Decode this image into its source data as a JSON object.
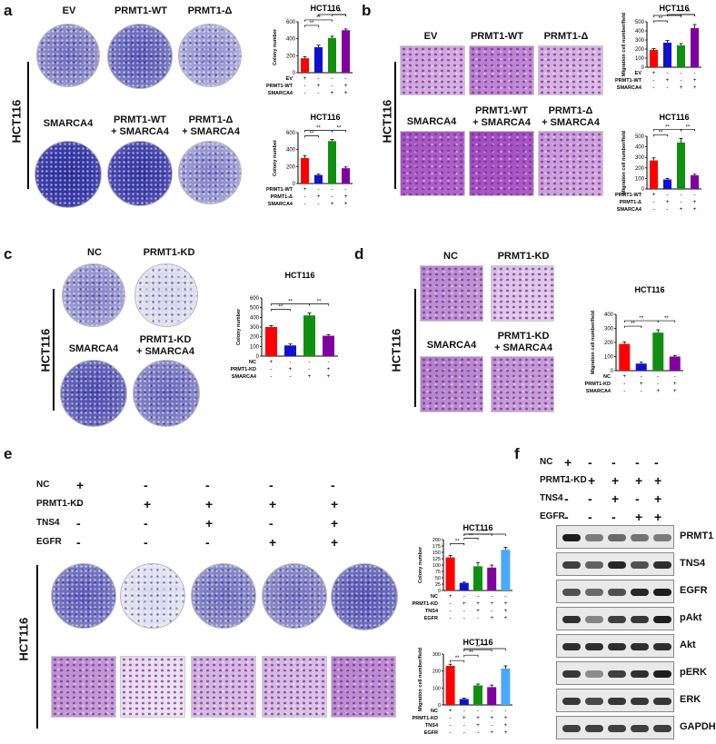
{
  "panels": {
    "a": {
      "letter": "a",
      "cell_line": "HCT116",
      "dish_labels": [
        "EV",
        "PRMT1-WT",
        "PRMT1-Δ",
        "SMARCA4",
        "PRMT1-WT\n+ SMARCA4",
        "PRMT1-Δ\n+ SMARCA4"
      ]
    },
    "b": {
      "letter": "b",
      "cell_line": "HCT116",
      "dish_labels": [
        "EV",
        "PRMT1-WT",
        "PRMT1-Δ",
        "SMARCA4",
        "PRMT1-WT\n+ SMARCA4",
        "PRMT1-Δ\n+ SMARCA4"
      ]
    },
    "c": {
      "letter": "c",
      "cell_line": "HCT116",
      "dish_labels": [
        "NC",
        "PRMT1-KD",
        "SMARCA4",
        "PRMT1-KD\n+ SMARCA4"
      ]
    },
    "d": {
      "letter": "d",
      "cell_line": "HCT116",
      "dish_labels": [
        "NC",
        "PRMT1-KD",
        "SMARCA4",
        "PRMT1-KD\n+ SMARCA4"
      ]
    },
    "e": {
      "letter": "e",
      "cell_line": "HCT116",
      "matrix_rows": [
        {
          "name": "NC",
          "vals": [
            "+",
            "-",
            "-",
            "-",
            "-"
          ]
        },
        {
          "name": "PRMT1-KD",
          "vals": [
            "-",
            "+",
            "+",
            "+",
            "+"
          ]
        },
        {
          "name": "TNS4",
          "vals": [
            "-",
            "-",
            "+",
            "-",
            "+"
          ]
        },
        {
          "name": "EGFR",
          "vals": [
            "-",
            "-",
            "-",
            "+",
            "+"
          ]
        }
      ]
    },
    "f": {
      "letter": "f",
      "matrix_rows": [
        {
          "name": "NC",
          "vals": [
            "+",
            "-",
            "-",
            "-",
            "-"
          ]
        },
        {
          "name": "PRMT1-KD",
          "vals": [
            "-",
            "+",
            "+",
            "+",
            "+"
          ]
        },
        {
          "name": "TNS4",
          "vals": [
            "-",
            "-",
            "+",
            "-",
            "+"
          ]
        },
        {
          "name": "EGFR",
          "vals": [
            "-",
            "-",
            "-",
            "+",
            "+"
          ]
        }
      ],
      "blots": [
        "PRMT1",
        "TNS4",
        "EGFR",
        "pAkt",
        "Akt",
        "pERK",
        "ERK",
        "GAPDH"
      ]
    }
  },
  "chart_data": [
    {
      "id": "a1",
      "type": "bar",
      "title": "HCT116",
      "ylabel": "Colony number",
      "ylim": [
        0,
        600
      ],
      "yticks": [
        0,
        200,
        400,
        600
      ],
      "values": [
        170,
        300,
        410,
        500
      ],
      "err": [
        20,
        25,
        20,
        15
      ],
      "colors": [
        "#ff0000",
        "#1010d0",
        "#109010",
        "#8000a0"
      ],
      "rows": [
        {
          "name": "EV",
          "vals": [
            "+",
            "-",
            "-",
            "-"
          ]
        },
        {
          "name": "PRMT1-WT",
          "vals": [
            "-",
            "+",
            "-",
            "+"
          ]
        },
        {
          "name": "SMARCA4",
          "vals": [
            "-",
            "-",
            "+",
            "+"
          ]
        }
      ],
      "sig": [
        {
          "a": 0,
          "b": 1,
          "t": "**",
          "lvl": 0
        },
        {
          "a": 0,
          "b": 2,
          "t": "**",
          "lvl": 1
        },
        {
          "a": 1,
          "b": 3,
          "t": "**",
          "lvl": 2
        },
        {
          "a": 2,
          "b": 3,
          "t": "**",
          "lvl": 3
        }
      ]
    },
    {
      "id": "a2",
      "type": "bar",
      "title": "HCT116",
      "ylabel": "Colony number",
      "ylim": [
        0,
        600
      ],
      "yticks": [
        0,
        200,
        400,
        600
      ],
      "values": [
        300,
        100,
        500,
        180
      ],
      "err": [
        30,
        10,
        20,
        15
      ],
      "colors": [
        "#ff0000",
        "#1010d0",
        "#109010",
        "#8000a0"
      ],
      "rows": [
        {
          "name": "PRMT1-WT",
          "vals": [
            "+",
            "-",
            "-",
            "-"
          ]
        },
        {
          "name": "PRMT1-Δ",
          "vals": [
            "-",
            "+",
            "-",
            "+"
          ]
        },
        {
          "name": "SMARCA4",
          "vals": [
            "-",
            "-",
            "+",
            "+"
          ]
        }
      ],
      "sig": [
        {
          "a": 0,
          "b": 1,
          "t": "**",
          "lvl": 0
        },
        {
          "a": 0,
          "b": 2,
          "t": "**",
          "lvl": 1
        },
        {
          "a": 2,
          "b": 3,
          "t": "**",
          "lvl": 1
        }
      ]
    },
    {
      "id": "b1",
      "type": "bar",
      "title": "HCT116",
      "ylabel": "Migration cell number/field",
      "ylim": [
        0,
        500
      ],
      "yticks": [
        0,
        100,
        200,
        300,
        400,
        500
      ],
      "values": [
        190,
        270,
        240,
        430
      ],
      "err": [
        15,
        25,
        20,
        40
      ],
      "colors": [
        "#ff0000",
        "#1010d0",
        "#109010",
        "#8000a0"
      ],
      "rows": [
        {
          "name": "EV",
          "vals": [
            "+",
            "-",
            "-",
            "-"
          ]
        },
        {
          "name": "PRMT1-WT",
          "vals": [
            "-",
            "+",
            "-",
            "+"
          ]
        },
        {
          "name": "SMARCA4",
          "vals": [
            "-",
            "-",
            "+",
            "+"
          ]
        }
      ],
      "sig": [
        {
          "a": 0,
          "b": 1,
          "t": "**",
          "lvl": 0
        },
        {
          "a": 0,
          "b": 2,
          "t": "*",
          "lvl": 1
        },
        {
          "a": 2,
          "b": 3,
          "t": "**",
          "lvl": 2
        },
        {
          "a": 1,
          "b": 3,
          "t": "**",
          "lvl": 3
        }
      ]
    },
    {
      "id": "b2",
      "type": "bar",
      "title": "HCT116",
      "ylabel": "Migration cell number/field",
      "ylim": [
        0,
        500
      ],
      "yticks": [
        0,
        100,
        200,
        300,
        400,
        500
      ],
      "values": [
        270,
        90,
        440,
        130
      ],
      "err": [
        25,
        10,
        40,
        10
      ],
      "colors": [
        "#ff0000",
        "#1010d0",
        "#109010",
        "#8000a0"
      ],
      "rows": [
        {
          "name": "PRMT1-WT",
          "vals": [
            "+",
            "-",
            "-",
            "-"
          ]
        },
        {
          "name": "PRMT1-Δ",
          "vals": [
            "-",
            "+",
            "-",
            "+"
          ]
        },
        {
          "name": "SMARCA4",
          "vals": [
            "-",
            "-",
            "+",
            "+"
          ]
        }
      ],
      "sig": [
        {
          "a": 0,
          "b": 1,
          "t": "**",
          "lvl": 0
        },
        {
          "a": 0,
          "b": 2,
          "t": "**",
          "lvl": 1
        },
        {
          "a": 2,
          "b": 3,
          "t": "**",
          "lvl": 1
        }
      ]
    },
    {
      "id": "c",
      "type": "bar",
      "title": "HCT116",
      "ylabel": "Colony number",
      "ylim": [
        0,
        600
      ],
      "yticks": [
        0,
        100,
        200,
        300,
        400,
        500,
        600
      ],
      "values": [
        300,
        110,
        420,
        210
      ],
      "err": [
        15,
        15,
        25,
        10
      ],
      "colors": [
        "#ff0000",
        "#1010d0",
        "#109010",
        "#8000a0"
      ],
      "rows": [
        {
          "name": "NC",
          "vals": [
            "+",
            "-",
            "-",
            "-"
          ]
        },
        {
          "name": "PRMT1-KD",
          "vals": [
            "-",
            "+",
            "-",
            "+"
          ]
        },
        {
          "name": "SMARCA4",
          "vals": [
            "-",
            "-",
            "+",
            "+"
          ]
        }
      ],
      "sig": [
        {
          "a": 0,
          "b": 1,
          "t": "**",
          "lvl": 0
        },
        {
          "a": 0,
          "b": 2,
          "t": "**",
          "lvl": 1
        },
        {
          "a": 2,
          "b": 3,
          "t": "**",
          "lvl": 1
        }
      ]
    },
    {
      "id": "d",
      "type": "bar",
      "title": "HCT116",
      "ylabel": "Migration cell number/field",
      "ylim": [
        0,
        400
      ],
      "yticks": [
        0,
        100,
        200,
        300,
        400
      ],
      "values": [
        190,
        50,
        270,
        100
      ],
      "err": [
        15,
        10,
        20,
        8
      ],
      "colors": [
        "#ff0000",
        "#1010d0",
        "#109010",
        "#8000a0"
      ],
      "rows": [
        {
          "name": "NC",
          "vals": [
            "+",
            "-",
            "-",
            "-"
          ]
        },
        {
          "name": "PRMT1-KD",
          "vals": [
            "-",
            "+",
            "-",
            "+"
          ]
        },
        {
          "name": "SMARCA4",
          "vals": [
            "-",
            "-",
            "+",
            "+"
          ]
        }
      ],
      "sig": [
        {
          "a": 0,
          "b": 1,
          "t": "**",
          "lvl": 0
        },
        {
          "a": 0,
          "b": 2,
          "t": "**",
          "lvl": 1
        },
        {
          "a": 2,
          "b": 3,
          "t": "**",
          "lvl": 1
        }
      ]
    },
    {
      "id": "e1",
      "type": "bar",
      "title": "HCT116",
      "ylabel": "Colony number",
      "ylim": [
        0,
        200
      ],
      "yticks": [
        0,
        25,
        50,
        75,
        100,
        125,
        150,
        175,
        200
      ],
      "values": [
        130,
        30,
        95,
        90,
        160
      ],
      "err": [
        8,
        3,
        15,
        10,
        10
      ],
      "colors": [
        "#ff0000",
        "#1010d0",
        "#109010",
        "#8000a0",
        "#4aa8ff"
      ],
      "rows": [
        {
          "name": "NC",
          "vals": [
            "+",
            "-",
            "-",
            "-",
            "-"
          ]
        },
        {
          "name": "PRMT1-KD",
          "vals": [
            "-",
            "+",
            "+",
            "+",
            "+"
          ]
        },
        {
          "name": "TNS4",
          "vals": [
            "-",
            "-",
            "+",
            "-",
            "+"
          ]
        },
        {
          "name": "EGFR",
          "vals": [
            "-",
            "-",
            "-",
            "+",
            "+"
          ]
        }
      ],
      "sig": [
        {
          "a": 0,
          "b": 1,
          "t": "**",
          "lvl": 0
        },
        {
          "a": 1,
          "b": 2,
          "t": "**",
          "lvl": 1
        },
        {
          "a": 1,
          "b": 3,
          "t": "**",
          "lvl": 2
        },
        {
          "a": 1,
          "b": 4,
          "t": "**",
          "lvl": 3
        }
      ]
    },
    {
      "id": "e2",
      "type": "bar",
      "title": "HCT116",
      "ylabel": "Migration cell number/field",
      "ylim": [
        0,
        300
      ],
      "yticks": [
        0,
        100,
        200,
        300
      ],
      "values": [
        230,
        35,
        115,
        105,
        215
      ],
      "err": [
        10,
        5,
        8,
        12,
        15
      ],
      "colors": [
        "#ff0000",
        "#1010d0",
        "#109010",
        "#8000a0",
        "#4aa8ff"
      ],
      "rows": [
        {
          "name": "NC",
          "vals": [
            "+",
            "-",
            "-",
            "-",
            "-"
          ]
        },
        {
          "name": "PRMT1-KD",
          "vals": [
            "-",
            "+",
            "+",
            "+",
            "+"
          ]
        },
        {
          "name": "TNS4",
          "vals": [
            "-",
            "-",
            "+",
            "-",
            "+"
          ]
        },
        {
          "name": "EGFR",
          "vals": [
            "-",
            "-",
            "-",
            "+",
            "+"
          ]
        }
      ],
      "sig": [
        {
          "a": 0,
          "b": 1,
          "t": "**",
          "lvl": 0
        },
        {
          "a": 1,
          "b": 2,
          "t": "**",
          "lvl": 1
        },
        {
          "a": 1,
          "b": 3,
          "t": "**",
          "lvl": 2
        },
        {
          "a": 1,
          "b": 4,
          "t": "**",
          "lvl": 3
        }
      ]
    }
  ],
  "colors": {
    "purple_dense": "#3a3aa8",
    "purple_sparse": "#c7c6e0",
    "migration": "#b070c8"
  }
}
